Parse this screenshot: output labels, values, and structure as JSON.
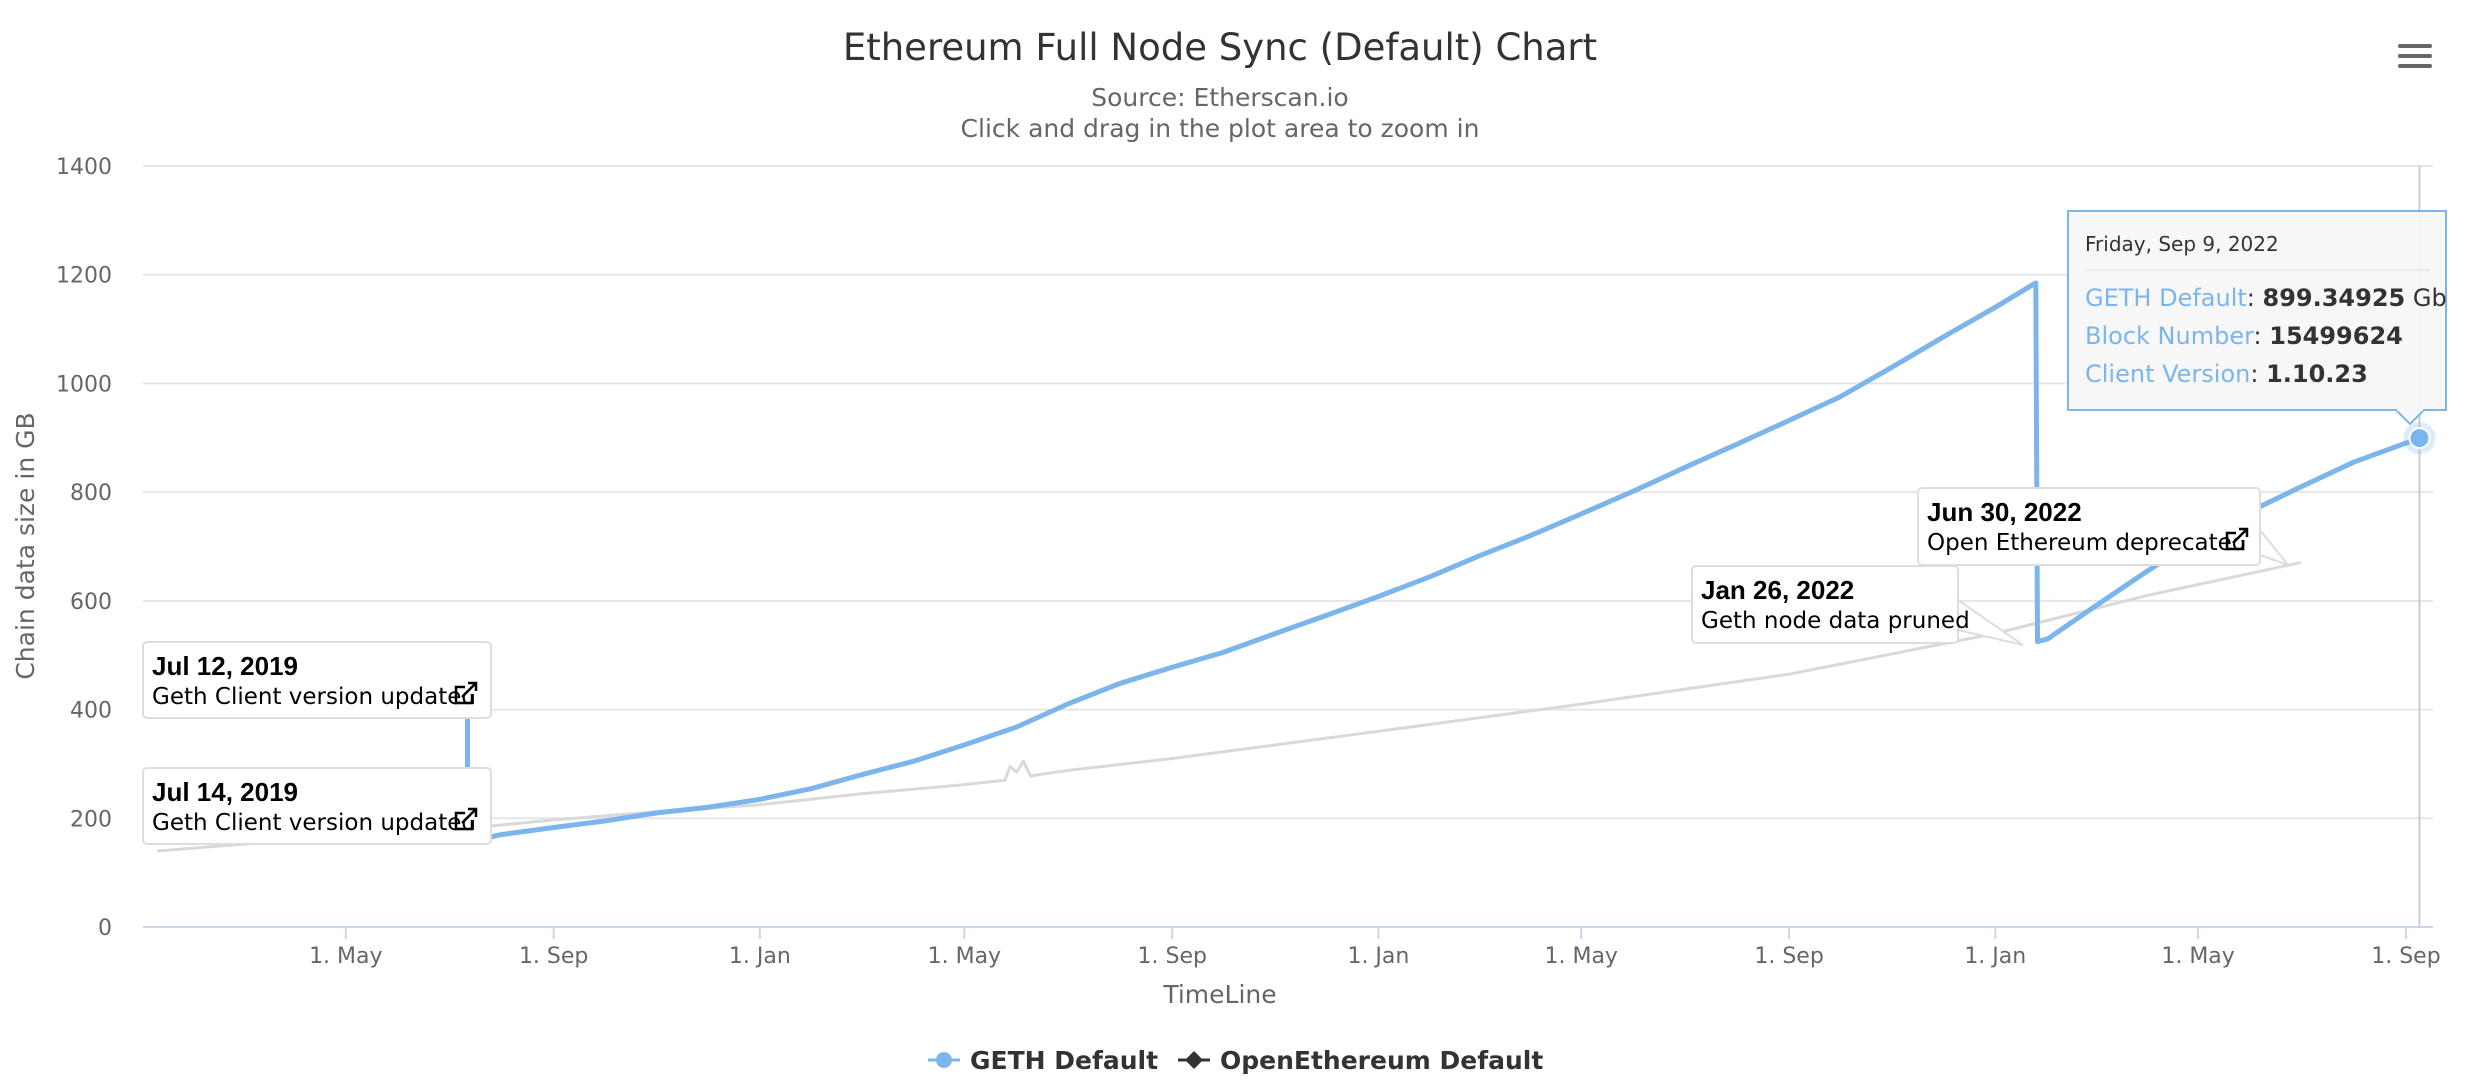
{
  "menu": {
    "icon": "hamburger-menu-icon"
  },
  "chart_data": {
    "type": "line",
    "title": "Ethereum Full Node Sync (Default) Chart",
    "subtitle": "Source: Etherscan.io",
    "subtitle2": "Click and drag in the plot area to zoom in",
    "xlabel": "TimeLine",
    "ylabel": "Chain data size in GB",
    "ylim": [
      0,
      1400
    ],
    "yticks": [
      0,
      200,
      400,
      600,
      800,
      1000,
      1200,
      1400
    ],
    "xlim": [
      "2019-01-01",
      "2022-09-17"
    ],
    "xticks": [
      {
        "date": "2019-05-01",
        "label": "1. May"
      },
      {
        "date": "2019-09-01",
        "label": "1. Sep"
      },
      {
        "date": "2020-01-01",
        "label": "1. Jan"
      },
      {
        "date": "2020-05-01",
        "label": "1. May"
      },
      {
        "date": "2020-09-01",
        "label": "1. Sep"
      },
      {
        "date": "2021-01-01",
        "label": "1. Jan"
      },
      {
        "date": "2021-05-01",
        "label": "1. May"
      },
      {
        "date": "2021-09-01",
        "label": "1. Sep"
      },
      {
        "date": "2022-01-01",
        "label": "1. Jan"
      },
      {
        "date": "2022-05-01",
        "label": "1. May"
      },
      {
        "date": "2022-09-01",
        "label": "1. Sep"
      }
    ],
    "grid": true,
    "legend_position": "bottom-center",
    "series": [
      {
        "name": "GETH Default",
        "color": "#7cb5ec",
        "marker": "circle",
        "points": [
          [
            "2019-07-10",
            390
          ],
          [
            "2019-07-12",
            390
          ],
          [
            "2019-07-12",
            156
          ],
          [
            "2019-08-01",
            170
          ],
          [
            "2019-09-01",
            183
          ],
          [
            "2019-10-01",
            195
          ],
          [
            "2019-11-01",
            210
          ],
          [
            "2019-12-01",
            220
          ],
          [
            "2020-01-01",
            235
          ],
          [
            "2020-02-01",
            255
          ],
          [
            "2020-03-01",
            280
          ],
          [
            "2020-04-01",
            305
          ],
          [
            "2020-05-01",
            335
          ],
          [
            "2020-06-01",
            368
          ],
          [
            "2020-07-01",
            410
          ],
          [
            "2020-08-01",
            448
          ],
          [
            "2020-09-01",
            478
          ],
          [
            "2020-10-01",
            505
          ],
          [
            "2020-11-01",
            540
          ],
          [
            "2020-12-01",
            573
          ],
          [
            "2021-01-01",
            608
          ],
          [
            "2021-02-01",
            645
          ],
          [
            "2021-03-01",
            682
          ],
          [
            "2021-04-01",
            720
          ],
          [
            "2021-05-01",
            760
          ],
          [
            "2021-06-01",
            802
          ],
          [
            "2021-07-01",
            845
          ],
          [
            "2021-08-01",
            888
          ],
          [
            "2021-09-01",
            932
          ],
          [
            "2021-10-01",
            975
          ],
          [
            "2021-11-01",
            1030
          ],
          [
            "2021-12-01",
            1085
          ],
          [
            "2022-01-01",
            1140
          ],
          [
            "2022-01-25",
            1185
          ],
          [
            "2022-01-26",
            525
          ],
          [
            "2022-02-01",
            530
          ],
          [
            "2022-03-01",
            590
          ],
          [
            "2022-04-01",
            655
          ],
          [
            "2022-05-01",
            715
          ],
          [
            "2022-06-01",
            765
          ],
          [
            "2022-07-01",
            810
          ],
          [
            "2022-08-01",
            855
          ],
          [
            "2022-09-09",
            899.34925
          ]
        ]
      },
      {
        "name": "OpenEthereum Default",
        "color": "#d9d9d9",
        "marker": "diamond",
        "points": [
          [
            "2019-01-10",
            140
          ],
          [
            "2019-04-01",
            160
          ],
          [
            "2019-07-01",
            178
          ],
          [
            "2019-09-01",
            197
          ],
          [
            "2019-11-01",
            212
          ],
          [
            "2020-01-01",
            225
          ],
          [
            "2020-03-01",
            245
          ],
          [
            "2020-05-01",
            262
          ],
          [
            "2020-05-25",
            270
          ],
          [
            "2020-05-28",
            295
          ],
          [
            "2020-06-01",
            285
          ],
          [
            "2020-06-05",
            305
          ],
          [
            "2020-06-09",
            278
          ],
          [
            "2020-07-01",
            288
          ],
          [
            "2020-09-01",
            310
          ],
          [
            "2021-01-01",
            360
          ],
          [
            "2021-05-01",
            410
          ],
          [
            "2021-09-01",
            465
          ],
          [
            "2022-01-01",
            540
          ],
          [
            "2022-04-01",
            610
          ],
          [
            "2022-06-30",
            670
          ]
        ]
      }
    ],
    "annotations": [
      {
        "date": "Jul 12, 2019",
        "text": "Geth Client version updated",
        "link_icon": "external-link-icon"
      },
      {
        "date": "Jul 14, 2019",
        "text": "Geth Client version updated",
        "link_icon": "external-link-icon"
      },
      {
        "date": "Jan 26, 2022",
        "text": "Geth node data pruned"
      },
      {
        "date": "Jun 30, 2022",
        "text": "Open Ethereum deprecated",
        "link_icon": "external-link-icon"
      }
    ],
    "tooltip": {
      "header": "Friday, Sep 9, 2022",
      "rows": [
        {
          "label": "GETH Default",
          "value": "899.34925",
          "unit": " Gb"
        },
        {
          "label": "Block Number",
          "value": "15499624",
          "unit": ""
        },
        {
          "label": "Client Version",
          "value": "1.10.23",
          "unit": ""
        }
      ]
    }
  }
}
